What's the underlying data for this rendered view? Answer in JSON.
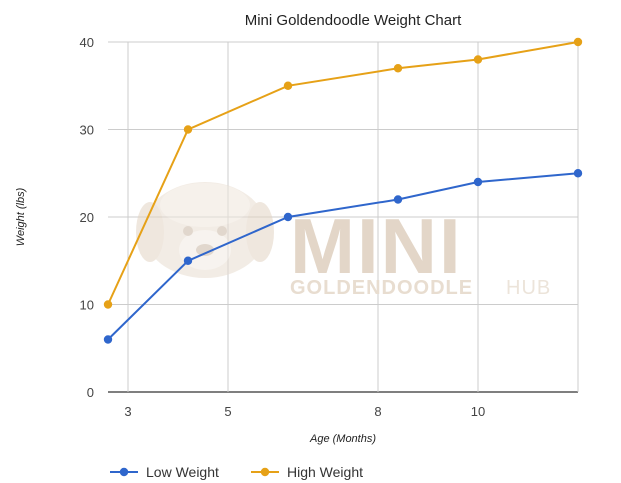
{
  "chart_data": {
    "type": "line",
    "title": "Mini Goldendoodle Weight Chart",
    "xlabel": "Age (Months)",
    "ylabel": "Weight (lbs)",
    "x": [
      2.6,
      4.2,
      6.2,
      8.4,
      10,
      12
    ],
    "x_ticks": [
      3,
      5,
      8,
      10
    ],
    "xlim": [
      2.6,
      12
    ],
    "ylim": [
      0,
      40
    ],
    "y_ticks": [
      0,
      10,
      20,
      30,
      40
    ],
    "grid": true,
    "legend_position": "bottom-left",
    "series": [
      {
        "name": "Low Weight",
        "color": "#2f66cc",
        "values": [
          6,
          15,
          20,
          22,
          24,
          25
        ]
      },
      {
        "name": "High Weight",
        "color": "#e6a117",
        "values": [
          10,
          30,
          35,
          37,
          38,
          40
        ]
      }
    ]
  },
  "watermark": {
    "big": "MINI",
    "line1": "GOLDENDOODLE",
    "line2": "HUB",
    "icon": "dog-head-icon",
    "color": "#e3d6c8"
  }
}
